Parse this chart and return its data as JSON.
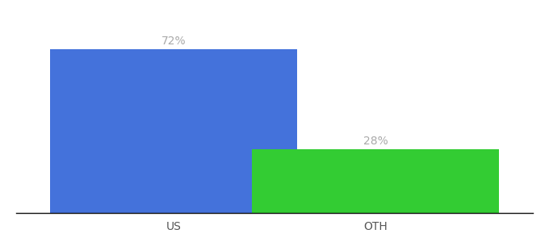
{
  "categories": [
    "US",
    "OTH"
  ],
  "values": [
    72,
    28
  ],
  "bar_colors": [
    "#4472db",
    "#33cc33"
  ],
  "label_texts": [
    "72%",
    "28%"
  ],
  "background_color": "#ffffff",
  "ylim": [
    0,
    85
  ],
  "label_color": "#aaaaaa",
  "label_fontsize": 10,
  "tick_fontsize": 10,
  "tick_color": "#555555",
  "bar_width": 0.55
}
